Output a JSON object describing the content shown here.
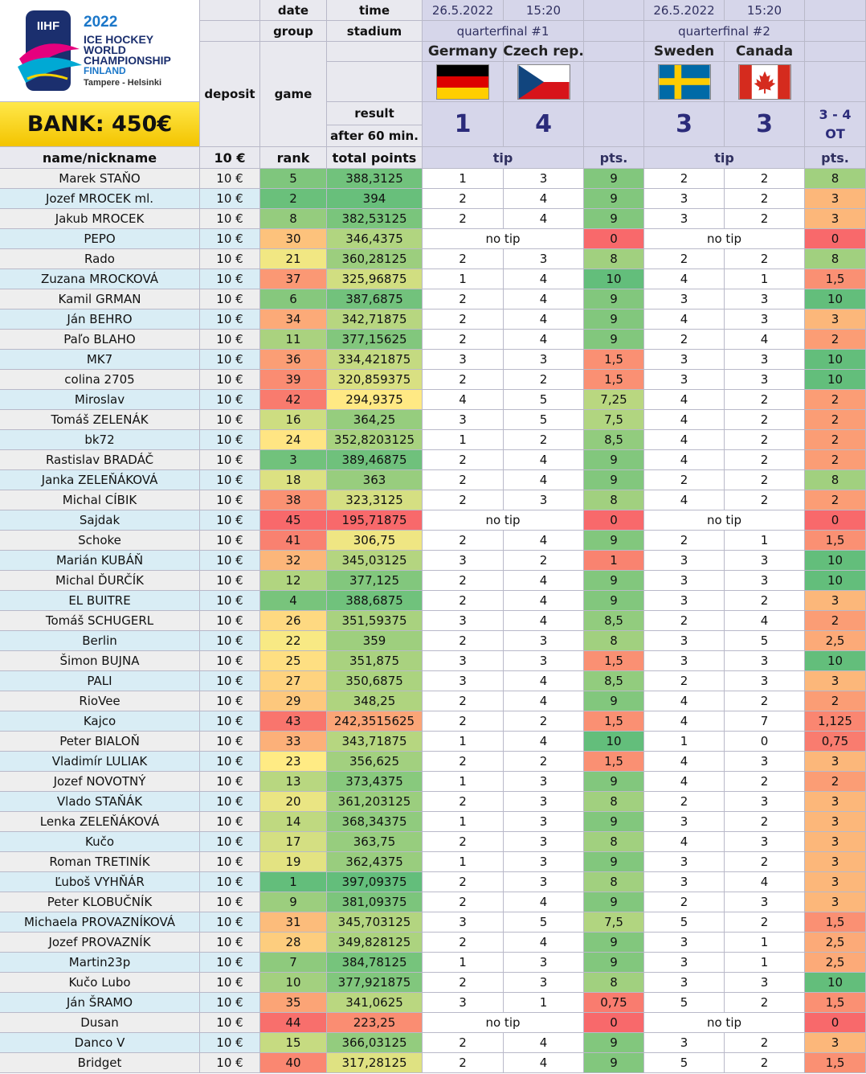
{
  "logo": {
    "brand": "IIHF",
    "year": "2022",
    "line1": "ICE HOCKEY",
    "line2": "WORLD",
    "line3": "CHAMPIONSHIP",
    "country": "FINLAND",
    "cities": "Tampere - Helsinki"
  },
  "bank": "BANK: 450€",
  "headers": {
    "date": "date",
    "time": "time",
    "group": "group",
    "stadium": "stadium",
    "deposit": "deposit",
    "game": "game",
    "result": "result",
    "after60": "after 60 min.",
    "name": "name/nickname",
    "fee": "10 €",
    "rank": "rank",
    "total": "total points",
    "tip": "tip",
    "pts": "pts."
  },
  "games": [
    {
      "date": "26.5.2022",
      "time": "15:20",
      "label": "quarterfinal #1",
      "home": "Germany",
      "away": "Czech rep.",
      "home_flag": "germany-flag-icon",
      "away_flag": "czech-flag-icon",
      "home_score": "1",
      "away_score": "4",
      "note1": "",
      "note2": ""
    },
    {
      "date": "26.5.2022",
      "time": "15:20",
      "label": "quarterfinal #2",
      "home": "Sweden",
      "away": "Canada",
      "home_flag": "sweden-flag-icon",
      "away_flag": "canada-flag-icon",
      "home_score": "3",
      "away_score": "3",
      "note1": "3 - 4",
      "note2": "OT"
    }
  ],
  "no_tip": "no tip",
  "colors": {
    "top": "#63be7b",
    "mid": "#ffeb84",
    "bottom": "#f8696b"
  },
  "rows": [
    [
      "Marek STAŇO",
      "10 €",
      "5",
      "388,3125",
      "1",
      "3",
      "9",
      "2",
      "2",
      "8"
    ],
    [
      "Jozef MROCEK ml.",
      "10 €",
      "2",
      "394",
      "2",
      "4",
      "9",
      "3",
      "2",
      "3"
    ],
    [
      "Jakub MROCEK",
      "10 €",
      "8",
      "382,53125",
      "2",
      "4",
      "9",
      "3",
      "2",
      "3"
    ],
    [
      "PEPO",
      "10 €",
      "30",
      "346,4375",
      "",
      "",
      "0",
      "",
      "",
      "0"
    ],
    [
      "Rado",
      "10 €",
      "21",
      "360,28125",
      "2",
      "3",
      "8",
      "2",
      "2",
      "8"
    ],
    [
      "Zuzana MROCKOVÁ",
      "10 €",
      "37",
      "325,96875",
      "1",
      "4",
      "10",
      "4",
      "1",
      "1,5"
    ],
    [
      "Kamil GRMAN",
      "10 €",
      "6",
      "387,6875",
      "2",
      "4",
      "9",
      "3",
      "3",
      "10"
    ],
    [
      "Ján BEHRO",
      "10 €",
      "34",
      "342,71875",
      "2",
      "4",
      "9",
      "4",
      "3",
      "3"
    ],
    [
      "Paľo BLAHO",
      "10 €",
      "11",
      "377,15625",
      "2",
      "4",
      "9",
      "2",
      "4",
      "2"
    ],
    [
      "MK7",
      "10 €",
      "36",
      "334,421875",
      "3",
      "3",
      "1,5",
      "3",
      "3",
      "10"
    ],
    [
      "colina 2705",
      "10 €",
      "39",
      "320,859375",
      "2",
      "2",
      "1,5",
      "3",
      "3",
      "10"
    ],
    [
      "Miroslav",
      "10 €",
      "42",
      "294,9375",
      "4",
      "5",
      "7,25",
      "4",
      "2",
      "2"
    ],
    [
      "Tomáš ZELENÁK",
      "10 €",
      "16",
      "364,25",
      "3",
      "5",
      "7,5",
      "4",
      "2",
      "2"
    ],
    [
      "bk72",
      "10 €",
      "24",
      "352,8203125",
      "1",
      "2",
      "8,5",
      "4",
      "2",
      "2"
    ],
    [
      "Rastislav BRADÁČ",
      "10 €",
      "3",
      "389,46875",
      "2",
      "4",
      "9",
      "4",
      "2",
      "2"
    ],
    [
      "Janka ZELEŇÁKOVÁ",
      "10 €",
      "18",
      "363",
      "2",
      "4",
      "9",
      "2",
      "2",
      "8"
    ],
    [
      "Michal CÍBIK",
      "10 €",
      "38",
      "323,3125",
      "2",
      "3",
      "8",
      "4",
      "2",
      "2"
    ],
    [
      "Sajdak",
      "10 €",
      "45",
      "195,71875",
      "",
      "",
      "0",
      "",
      "",
      "0"
    ],
    [
      "Schoke",
      "10 €",
      "41",
      "306,75",
      "2",
      "4",
      "9",
      "2",
      "1",
      "1,5"
    ],
    [
      "Marián KUBÁŇ",
      "10 €",
      "32",
      "345,03125",
      "3",
      "2",
      "1",
      "3",
      "3",
      "10"
    ],
    [
      "Michal ĎURČÍK",
      "10 €",
      "12",
      "377,125",
      "2",
      "4",
      "9",
      "3",
      "3",
      "10"
    ],
    [
      "EL BUITRE",
      "10 €",
      "4",
      "388,6875",
      "2",
      "4",
      "9",
      "3",
      "2",
      "3"
    ],
    [
      "Tomáš SCHUGERL",
      "10 €",
      "26",
      "351,59375",
      "3",
      "4",
      "8,5",
      "2",
      "4",
      "2"
    ],
    [
      "Berlin",
      "10 €",
      "22",
      "359",
      "2",
      "3",
      "8",
      "3",
      "5",
      "2,5"
    ],
    [
      "Šimon BUJNA",
      "10 €",
      "25",
      "351,875",
      "3",
      "3",
      "1,5",
      "3",
      "3",
      "10"
    ],
    [
      "PALI",
      "10 €",
      "27",
      "350,6875",
      "3",
      "4",
      "8,5",
      "2",
      "3",
      "3"
    ],
    [
      "RioVee",
      "10 €",
      "29",
      "348,25",
      "2",
      "4",
      "9",
      "4",
      "2",
      "2"
    ],
    [
      "Kajco",
      "10 €",
      "43",
      "242,3515625",
      "2",
      "2",
      "1,5",
      "4",
      "7",
      "1,125"
    ],
    [
      "Peter BIALOŇ",
      "10 €",
      "33",
      "343,71875",
      "1",
      "4",
      "10",
      "1",
      "0",
      "0,75"
    ],
    [
      "Vladimír LULIAK",
      "10 €",
      "23",
      "356,625",
      "2",
      "2",
      "1,5",
      "4",
      "3",
      "3"
    ],
    [
      "Jozef NOVOTNÝ",
      "10 €",
      "13",
      "373,4375",
      "1",
      "3",
      "9",
      "4",
      "2",
      "2"
    ],
    [
      "Vlado STAŇÁK",
      "10 €",
      "20",
      "361,203125",
      "2",
      "3",
      "8",
      "2",
      "3",
      "3"
    ],
    [
      "Lenka ZELEŇÁKOVÁ",
      "10 €",
      "14",
      "368,34375",
      "1",
      "3",
      "9",
      "3",
      "2",
      "3"
    ],
    [
      "Kučo",
      "10 €",
      "17",
      "363,75",
      "2",
      "3",
      "8",
      "4",
      "3",
      "3"
    ],
    [
      "Roman TRETINÍK",
      "10 €",
      "19",
      "362,4375",
      "1",
      "3",
      "9",
      "3",
      "2",
      "3"
    ],
    [
      "Ľuboš VYHŇÁR",
      "10 €",
      "1",
      "397,09375",
      "2",
      "3",
      "8",
      "3",
      "4",
      "3"
    ],
    [
      "Peter KLOBUČNÍK",
      "10 €",
      "9",
      "381,09375",
      "2",
      "4",
      "9",
      "2",
      "3",
      "3"
    ],
    [
      "Michaela PROVAZNÍKOVÁ",
      "10 €",
      "31",
      "345,703125",
      "3",
      "5",
      "7,5",
      "5",
      "2",
      "1,5"
    ],
    [
      "Jozef PROVAZNÍK",
      "10 €",
      "28",
      "349,828125",
      "2",
      "4",
      "9",
      "3",
      "1",
      "2,5"
    ],
    [
      "Martin23p",
      "10 €",
      "7",
      "384,78125",
      "1",
      "3",
      "9",
      "3",
      "1",
      "2,5"
    ],
    [
      "Kučo Lubo",
      "10 €",
      "10",
      "377,921875",
      "2",
      "3",
      "8",
      "3",
      "3",
      "10"
    ],
    [
      "Ján ŠRAMO",
      "10 €",
      "35",
      "341,0625",
      "3",
      "1",
      "0,75",
      "5",
      "2",
      "1,5"
    ],
    [
      "Dusan",
      "10 €",
      "44",
      "223,25",
      "",
      "",
      "0",
      "",
      "",
      "0"
    ],
    [
      "Danco V",
      "10 €",
      "15",
      "366,03125",
      "2",
      "4",
      "9",
      "3",
      "2",
      "3"
    ],
    [
      "Bridget",
      "10 €",
      "40",
      "317,28125",
      "2",
      "4",
      "9",
      "5",
      "2",
      "1,5"
    ]
  ]
}
